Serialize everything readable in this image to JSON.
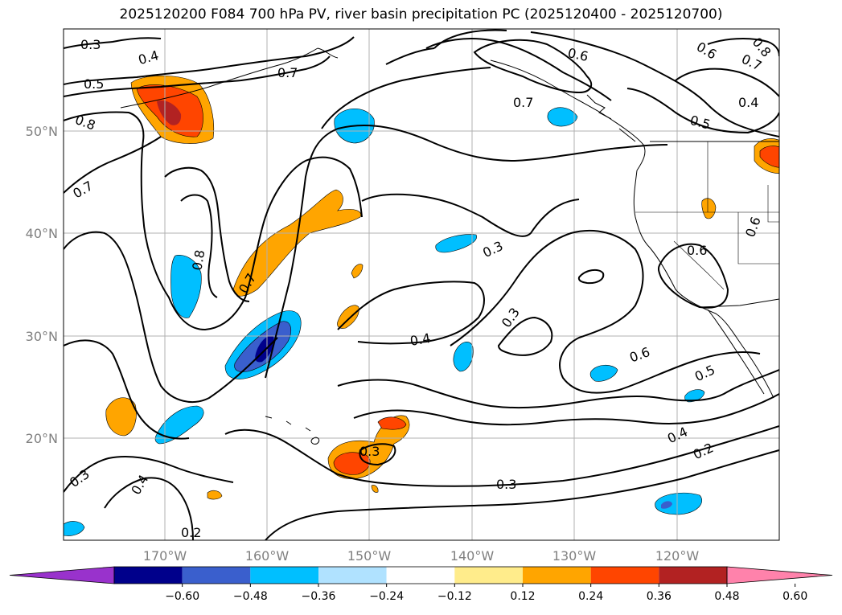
{
  "title": "2025120200 F084 700 hPa PV, river basin precipitation PC (2025120400 - 2025120700)",
  "map": {
    "lat_labels": [
      "50°N",
      "40°N",
      "30°N",
      "20°N"
    ],
    "lon_labels": [
      "170°W",
      "160°W",
      "150°W",
      "140°W",
      "130°W",
      "120°W"
    ],
    "contour_labels": [
      "0.3",
      "0.4",
      "0.5",
      "0.8",
      "0.7",
      "0.7",
      "0.8",
      "0.7",
      "0.6",
      "0.6",
      "0.7",
      "0.8",
      "0.7",
      "0.4",
      "0.5",
      "0.3",
      "0.3",
      "0.4",
      "0.6",
      "0.6",
      "0.6",
      "0.5",
      "0.4",
      "0.2",
      "0.3",
      "0.3",
      "0.4",
      "0.2",
      "0.3"
    ]
  },
  "colorbar": {
    "ticks": [
      "−0.60",
      "−0.48",
      "−0.36",
      "−0.24",
      "−0.12",
      "0.12",
      "0.24",
      "0.36",
      "0.48",
      "0.60"
    ],
    "colors": [
      "#9932cc",
      "#00008b",
      "#3a5fcd",
      "#00bfff",
      "#b0e2ff",
      "#ffffff",
      "#ffec8b",
      "#ffa500",
      "#ff4500",
      "#b22222",
      "#ff82ab"
    ]
  }
}
